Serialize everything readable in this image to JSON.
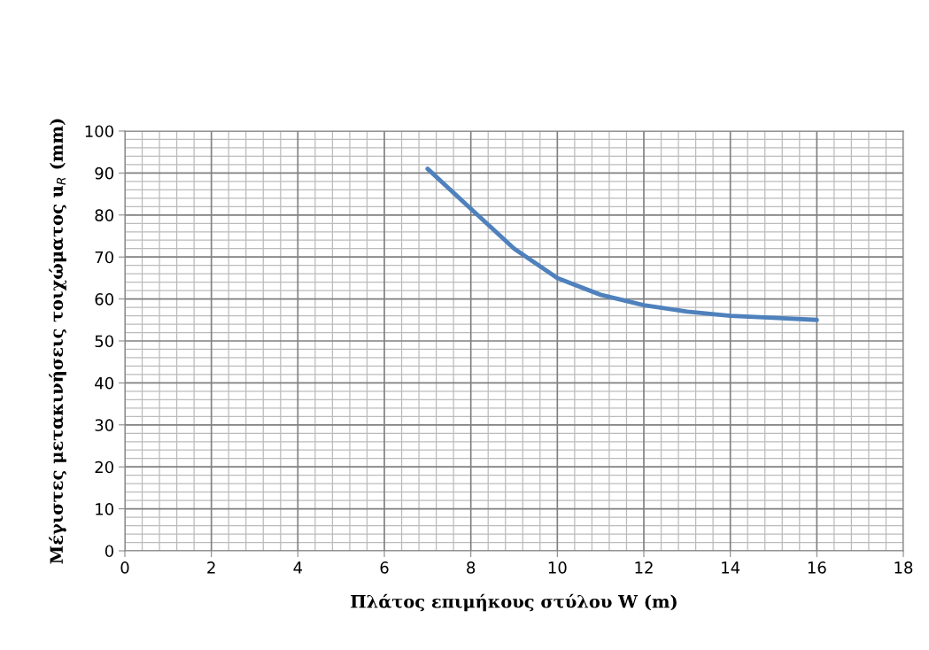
{
  "chart_data": {
    "type": "line",
    "xlabel": "Πλάτος επιμήκους στύλου W (m)",
    "ylabel": "Μέγιστες μετακινήσεις τοιχώματος u$_{R}$ (mm)",
    "x": [
      7,
      8,
      9,
      10,
      11,
      12,
      13,
      14,
      15,
      16
    ],
    "series": [
      {
        "color": "#4f81bd",
        "values": [
          91,
          81.5,
          72,
          65,
          61,
          58.5,
          57,
          56,
          55.5,
          55
        ]
      }
    ],
    "xlim": [
      0,
      18
    ],
    "xticks": [
      0,
      2,
      4,
      6,
      8,
      10,
      12,
      14,
      16,
      18
    ],
    "ylim": [
      0,
      100
    ],
    "yticks": [
      0,
      10,
      20,
      30,
      40,
      50,
      60,
      70,
      80,
      90,
      100
    ],
    "grid": true,
    "legend": false,
    "marker": "none",
    "line_style": "solid"
  }
}
